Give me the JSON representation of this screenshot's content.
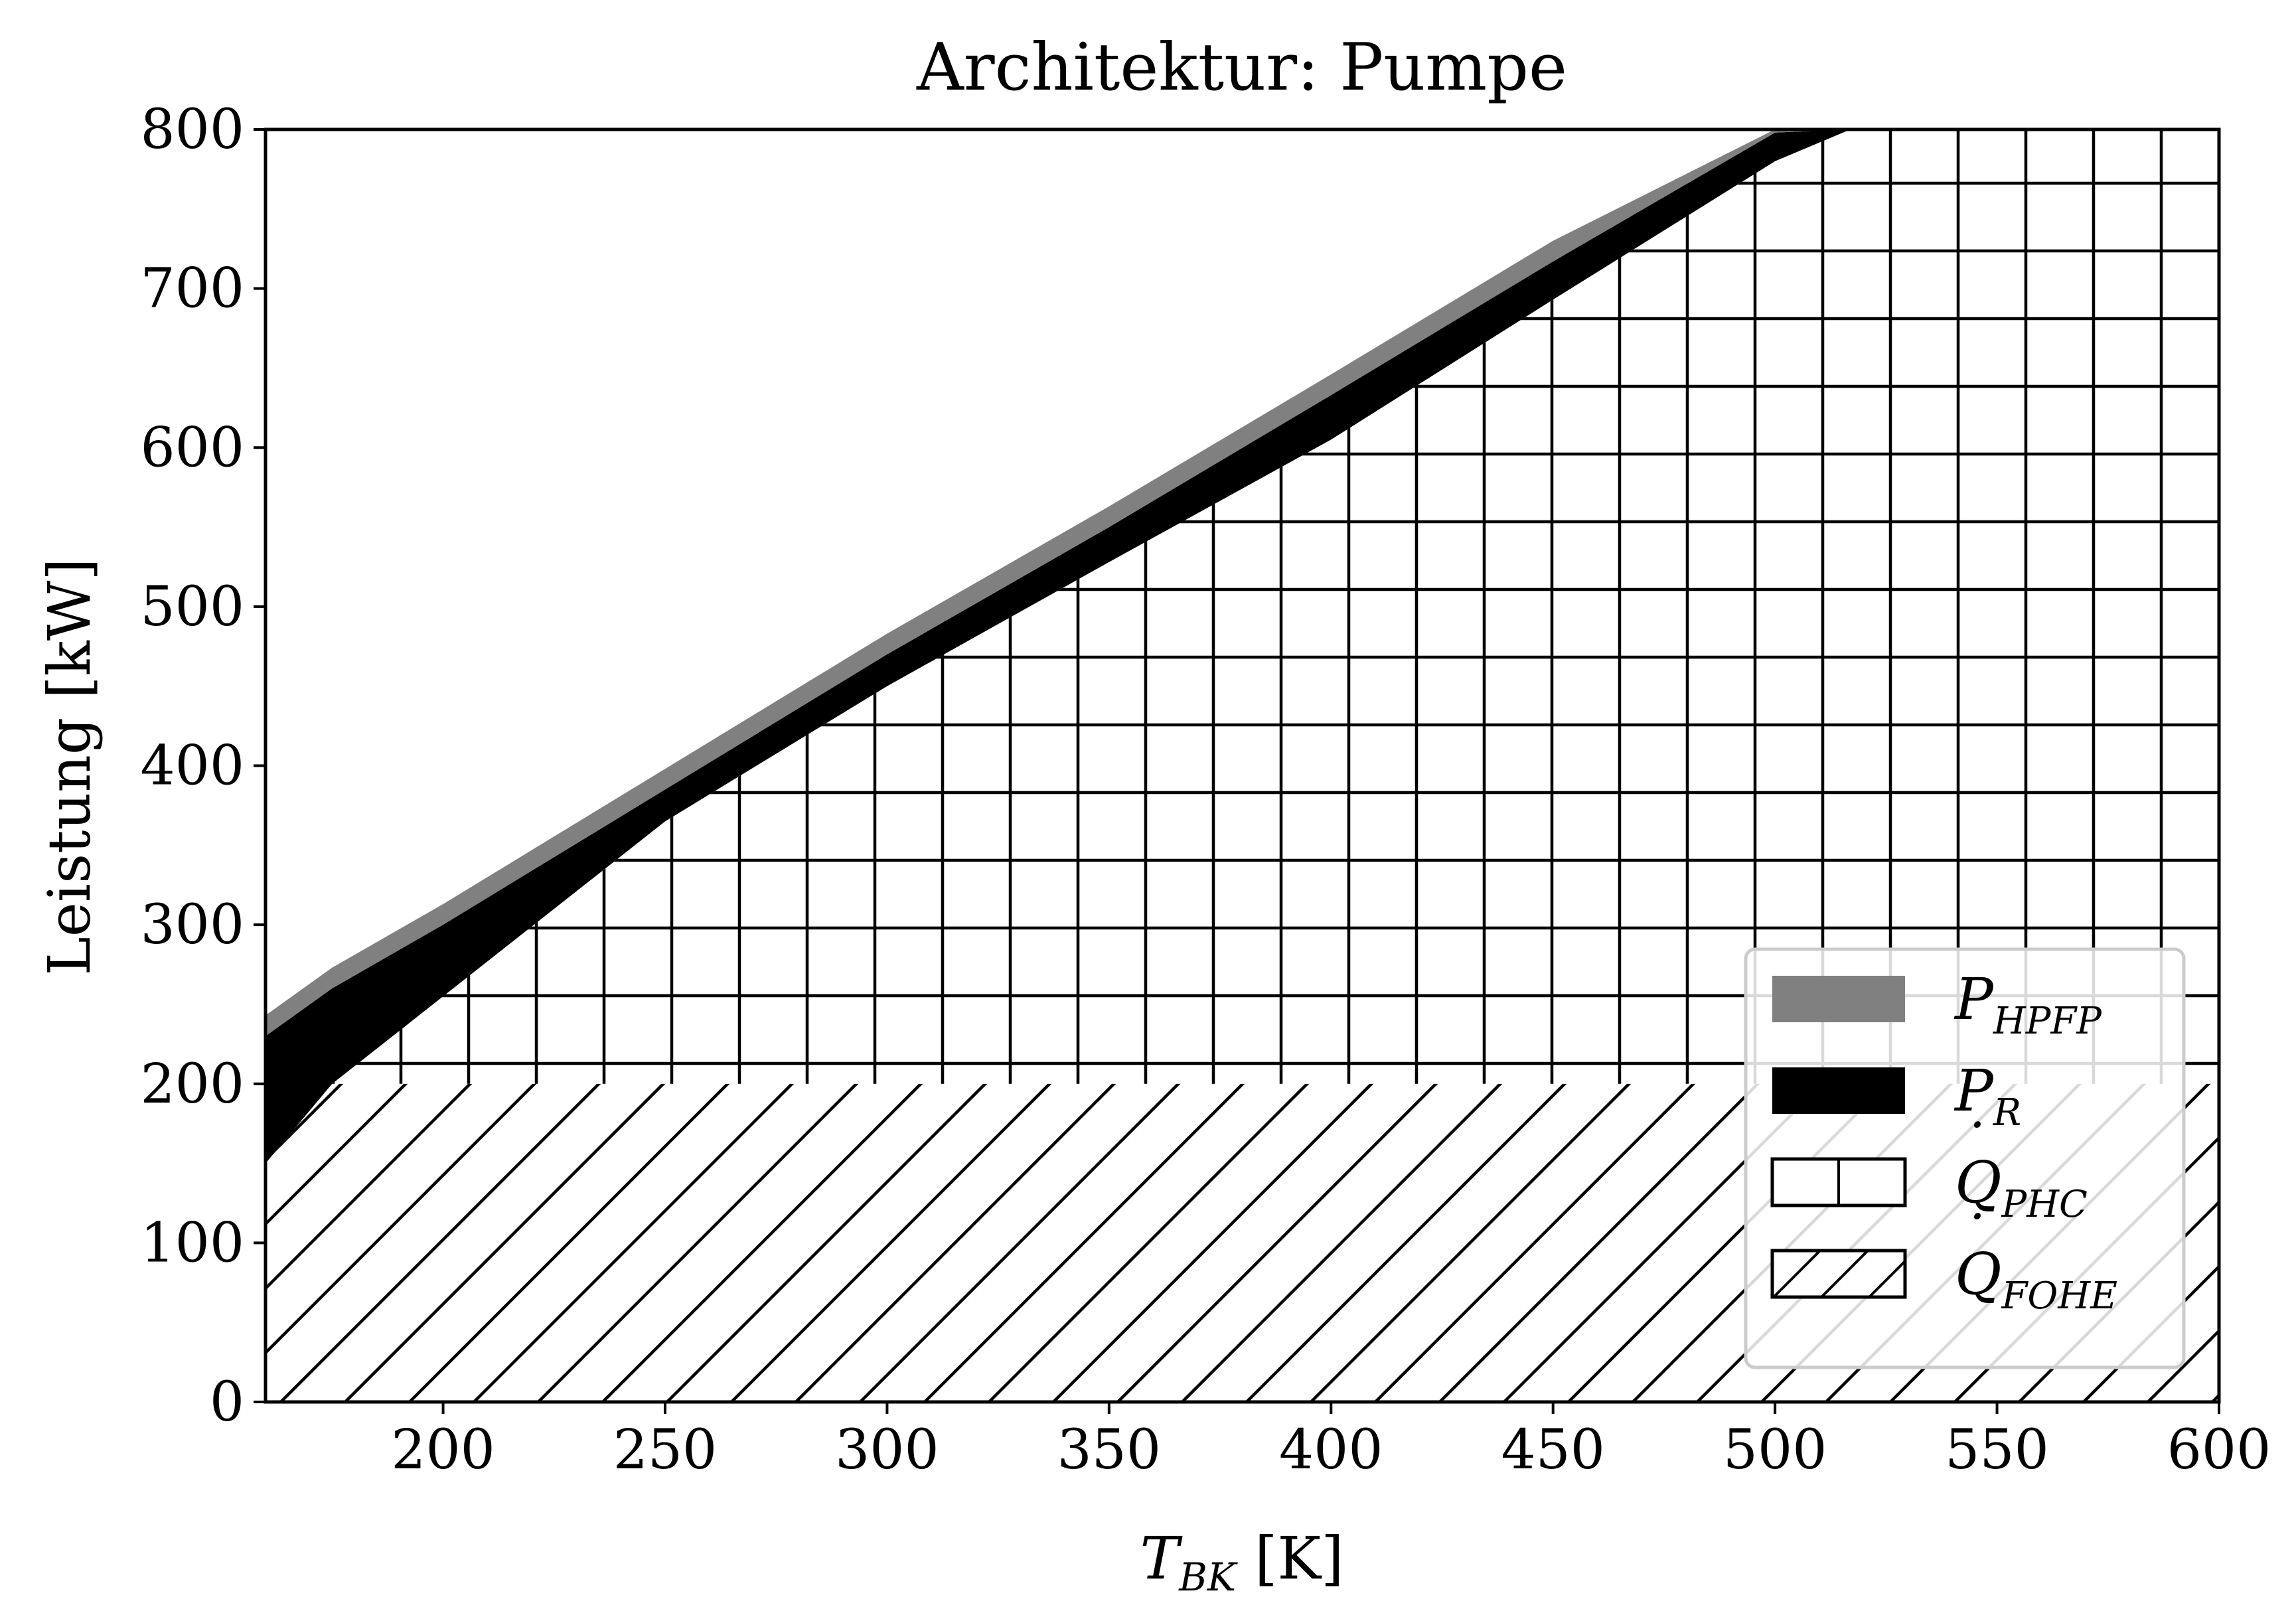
{
  "chart_data": {
    "type": "area",
    "title": "Architektur: Pumpe",
    "xlabel_main": "T",
    "xlabel_sub": "BK",
    "xlabel_unit": " [K]",
    "ylabel": "Leistung [kW]",
    "xlim": [
      160,
      600
    ],
    "ylim": [
      0,
      800
    ],
    "x_ticks": [
      200,
      250,
      300,
      350,
      400,
      450,
      500,
      550,
      600
    ],
    "y_ticks": [
      0,
      100,
      200,
      300,
      400,
      500,
      600,
      700,
      800
    ],
    "x": [
      160,
      175,
      200,
      250,
      300,
      350,
      400,
      450,
      500,
      517,
      600
    ],
    "series": [
      {
        "name": "Q_FOHE",
        "legend_main": "Q",
        "legend_sub": "FOHE",
        "stack_bottom": [
          0,
          0,
          0,
          0,
          0,
          0,
          0,
          0,
          0,
          0,
          0
        ],
        "stack_top": [
          200,
          200,
          200,
          200,
          200,
          200,
          200,
          200,
          200,
          200,
          200
        ],
        "pattern": "diagonal-hatch"
      },
      {
        "name": "Q_PHC",
        "legend_main": "Q",
        "legend_sub": "PHC",
        "stack_bottom": [
          200,
          200,
          200,
          200,
          200,
          200,
          200,
          200,
          200,
          200,
          200
        ],
        "stack_top": [
          150,
          200,
          255,
          365,
          450,
          528,
          605,
          693,
          780,
          800,
          800
        ],
        "pattern": "grid-hatch"
      },
      {
        "name": "P_R",
        "legend_main": "P",
        "legend_sub": "R",
        "stack_bottom": [
          150,
          200,
          255,
          365,
          450,
          528,
          605,
          693,
          780,
          800,
          800
        ],
        "stack_top": [
          230,
          260,
          300,
          385,
          470,
          550,
          633,
          717,
          798,
          800,
          800
        ],
        "color": "#000000"
      },
      {
        "name": "P_HPFP",
        "legend_main": "P",
        "legend_sub": "HPFP",
        "stack_bottom": [
          230,
          260,
          300,
          385,
          470,
          550,
          633,
          717,
          798,
          800,
          800
        ],
        "stack_top": [
          243,
          273,
          313,
          398,
          483,
          563,
          646,
          730,
          800,
          800,
          800
        ],
        "color": "#808080"
      }
    ],
    "legend_order": [
      "P_HPFP",
      "P_R",
      "Q_PHC",
      "Q_FOHE"
    ],
    "legend_position": "lower-right",
    "grid": false
  }
}
